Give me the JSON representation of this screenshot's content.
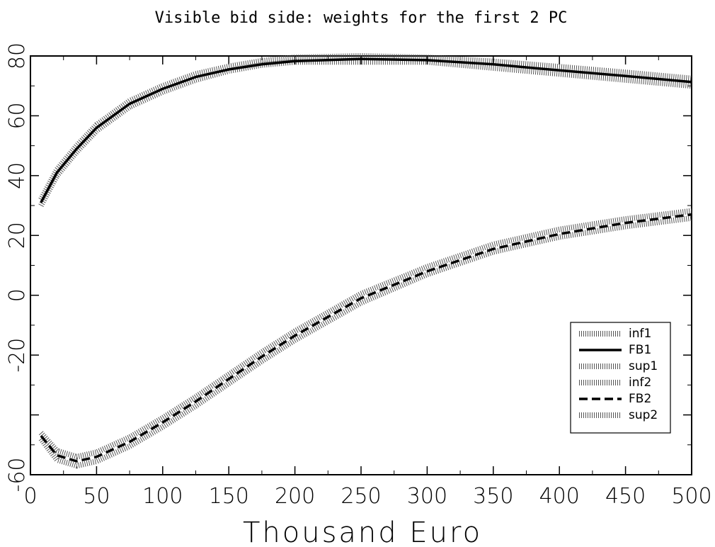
{
  "chart_data": {
    "type": "line",
    "title": "Visible bid side: weights for the first 2 PC",
    "xlabel": "Thousand Euro",
    "ylabel": "",
    "xlim": [
      0,
      500
    ],
    "ylim": [
      -60,
      80
    ],
    "xticks": [
      0,
      50,
      100,
      150,
      200,
      250,
      300,
      350,
      400,
      450,
      500
    ],
    "yticks": [
      -60,
      -20,
      0,
      20,
      40,
      60,
      80
    ],
    "ytick_labels": [
      "-60",
      "-20",
      "0",
      "20",
      "40",
      "60",
      "80"
    ],
    "x": [
      8,
      20,
      35,
      50,
      75,
      100,
      125,
      150,
      175,
      200,
      250,
      300,
      350,
      400,
      450,
      500
    ],
    "series": [
      {
        "name": "inf1",
        "style": "band",
        "values": [
          30,
          40,
          48,
          55,
          63,
          68,
          72,
          75,
          77,
          78,
          78,
          78,
          76,
          74,
          72,
          70
        ]
      },
      {
        "name": "FB1",
        "style": "solid",
        "values": [
          31,
          41,
          49,
          56,
          64,
          69,
          73,
          75.5,
          77.2,
          78.3,
          79,
          78.6,
          77.2,
          75.2,
          73.3,
          71.3
        ]
      },
      {
        "name": "sup1",
        "style": "band",
        "values": [
          32,
          42,
          50,
          57,
          65,
          70,
          74,
          76.5,
          78.4,
          79.5,
          80,
          79.5,
          78.2,
          76.4,
          74.5,
          72.5
        ]
      },
      {
        "name": "inf2",
        "style": "band",
        "values": [
          -48,
          -55,
          -57,
          -55.5,
          -50.5,
          -44,
          -37,
          -29.5,
          -22,
          -15,
          -2.5,
          7,
          14.5,
          19.5,
          23,
          25.8
        ]
      },
      {
        "name": "FB2",
        "style": "dashed",
        "values": [
          -47,
          -53.5,
          -55.5,
          -54,
          -49,
          -42.5,
          -35.5,
          -28,
          -20.5,
          -13.5,
          -1,
          8,
          15.5,
          20.5,
          24.2,
          27
        ]
      },
      {
        "name": "sup2",
        "style": "band",
        "values": [
          -46,
          -52,
          -54,
          -52.5,
          -47.5,
          -41,
          -34,
          -26.5,
          -19,
          -12,
          0.5,
          9.5,
          17,
          22,
          25.5,
          28.2
        ]
      }
    ],
    "legend_position": "lower-right",
    "grid": false
  }
}
